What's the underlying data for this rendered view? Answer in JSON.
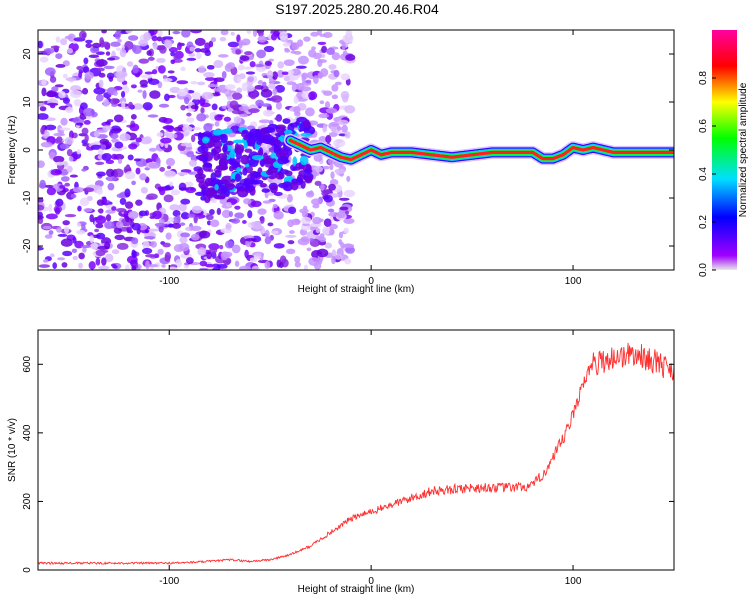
{
  "figure_title": "S197.2025.280.20.46.R04",
  "chart_data": [
    {
      "type": "heatmap",
      "title": "S197.2025.280.20.46.R04",
      "xlabel": "Height of straight line (km)",
      "ylabel": "Frequency (Hz)",
      "xlim": [
        -165,
        150
      ],
      "ylim": [
        -25,
        25
      ],
      "xticks": [
        -100,
        0,
        100
      ],
      "yticks": [
        -20,
        -10,
        0,
        10,
        20
      ],
      "colorbar": {
        "label": "Normalized spectral amplitude",
        "range": [
          0.0,
          1.0
        ],
        "ticks": [
          0.0,
          0.2,
          0.4,
          0.6,
          0.8
        ],
        "tick_labels": [
          "0.0",
          "0.2",
          "0.4",
          "0.6",
          "0.8"
        ],
        "colormap_stops": [
          "#e0e0e0",
          "#7a00ff",
          "#0000ff",
          "#00ffff",
          "#00ff00",
          "#ffff00",
          "#ff0000",
          "#ff00aa"
        ]
      },
      "signal_ridge": {
        "x": [
          -40,
          -30,
          -25,
          -20,
          -15,
          -10,
          -5,
          0,
          5,
          10,
          20,
          40,
          60,
          80,
          85,
          90,
          95,
          100,
          105,
          110,
          120,
          150
        ],
        "frequency": [
          2,
          0,
          0.5,
          -0.5,
          -1.5,
          -2,
          -1,
          0,
          -1,
          -0.5,
          -0.5,
          -1.5,
          -0.5,
          -0.5,
          -1.8,
          -1.8,
          -1,
          0.5,
          0,
          0.5,
          -0.5,
          -0.5
        ]
      },
      "noise_region_x": [
        -165,
        -40
      ]
    },
    {
      "type": "line",
      "title": "",
      "xlabel": "Height of straight line (km)",
      "ylabel": "SNR (10 * v/v)",
      "xlim": [
        -165,
        150
      ],
      "ylim": [
        0,
        700
      ],
      "xticks": [
        -100,
        0,
        100
      ],
      "yticks": [
        0,
        200,
        400,
        600
      ],
      "series": [
        {
          "name": "SNR",
          "color": "#ff3030",
          "x": [
            -165,
            -140,
            -120,
            -100,
            -90,
            -80,
            -70,
            -60,
            -50,
            -40,
            -30,
            -20,
            -10,
            0,
            10,
            20,
            30,
            40,
            50,
            60,
            70,
            80,
            85,
            90,
            95,
            100,
            105,
            110,
            120,
            130,
            140,
            150
          ],
          "values": [
            20,
            20,
            20,
            20,
            22,
            25,
            30,
            25,
            30,
            45,
            70,
            110,
            150,
            170,
            190,
            210,
            230,
            235,
            240,
            240,
            240,
            245,
            280,
            320,
            380,
            450,
            550,
            600,
            620,
            630,
            610,
            580
          ]
        }
      ]
    }
  ]
}
